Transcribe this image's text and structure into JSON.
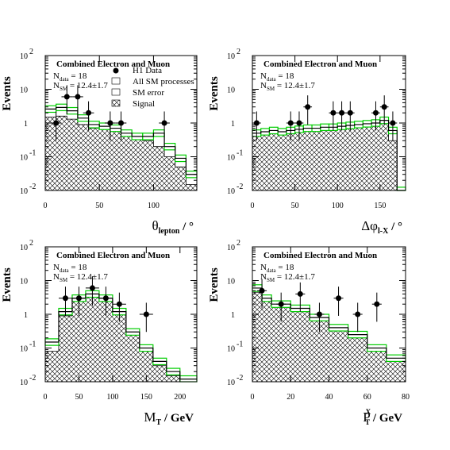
{
  "legend": {
    "data": "H1 Data",
    "sm": "All SM processes",
    "err": "SM error",
    "signal": "Signal"
  },
  "colors": {
    "sm_line": "#000000",
    "sm_error_band": "#00cc00",
    "signal_hatch": "#000000",
    "data_marker": "#000000"
  },
  "chart_data": [
    {
      "type": "bar",
      "title": "Combined Electron and Muon",
      "n_data": "N",
      "n_data_sub": "data",
      "n_data_val": " = 18",
      "n_sm": "N",
      "n_sm_sub": "SM",
      "n_sm_val": " = 12.4±1.7",
      "ylabel": "Events",
      "xlabel_main": "θ",
      "xlabel_sub": "lepton",
      "xlabel_tail": " / °",
      "xlim": [
        0,
        140
      ],
      "ylim": [
        0.01,
        100
      ],
      "yscale": "log",
      "xticks": [
        0,
        50,
        100
      ],
      "edges": [
        0,
        10,
        20,
        30,
        40,
        50,
        60,
        70,
        80,
        90,
        100,
        110,
        120,
        130,
        140
      ],
      "sm": [
        2.6,
        2.9,
        2.3,
        1.4,
        0.9,
        0.8,
        0.7,
        0.5,
        0.4,
        0.4,
        0.5,
        0.2,
        0.09,
        0.03
      ],
      "signal": [
        1.5,
        1.6,
        1.3,
        0.9,
        0.7,
        0.7,
        0.6,
        0.45,
        0.35,
        0.3,
        0.2,
        0.1,
        0.05,
        0.015
      ],
      "data": [
        {
          "x": 10,
          "y": 1
        },
        {
          "x": 20,
          "y": 6
        },
        {
          "x": 30,
          "y": 6
        },
        {
          "x": 40,
          "y": 2
        },
        {
          "x": 60,
          "y": 1
        },
        {
          "x": 70,
          "y": 1
        },
        {
          "x": 110,
          "y": 1
        }
      ],
      "show_legend": true
    },
    {
      "type": "bar",
      "title": "Combined Electron and Muon",
      "n_data": "N",
      "n_data_sub": "data",
      "n_data_val": " = 18",
      "n_sm": "N",
      "n_sm_sub": "SM",
      "n_sm_val": " = 12.4±1.7",
      "ylabel": "Events",
      "xlabel_main": "Δφ",
      "xlabel_sub": "l-X",
      "xlabel_tail": " / °",
      "xlim": [
        0,
        180
      ],
      "ylim": [
        0.01,
        100
      ],
      "yscale": "log",
      "xticks": [
        0,
        50,
        100,
        150
      ],
      "edges": [
        0,
        10,
        20,
        30,
        40,
        50,
        60,
        70,
        80,
        90,
        100,
        110,
        120,
        130,
        140,
        150,
        160,
        170,
        180
      ],
      "sm": [
        0.5,
        0.55,
        0.6,
        0.55,
        0.6,
        0.65,
        0.7,
        0.7,
        0.75,
        0.75,
        0.8,
        0.85,
        0.9,
        0.95,
        1.0,
        1.2,
        0.6,
        0.01
      ],
      "signal": [
        0.4,
        0.45,
        0.5,
        0.45,
        0.5,
        0.55,
        0.6,
        0.6,
        0.65,
        0.65,
        0.7,
        0.75,
        0.8,
        0.85,
        0.9,
        1.0,
        0.3,
        0.01
      ],
      "data": [
        {
          "x": 5,
          "y": 1
        },
        {
          "x": 45,
          "y": 1
        },
        {
          "x": 55,
          "y": 1
        },
        {
          "x": 65,
          "y": 3
        },
        {
          "x": 95,
          "y": 2
        },
        {
          "x": 105,
          "y": 2
        },
        {
          "x": 115,
          "y": 2
        },
        {
          "x": 145,
          "y": 2
        },
        {
          "x": 155,
          "y": 3
        },
        {
          "x": 165,
          "y": 1
        }
      ],
      "show_legend": false
    },
    {
      "type": "bar",
      "title": "Combined Electron and Muon",
      "n_data": "N",
      "n_data_sub": "data",
      "n_data_val": " = 18",
      "n_sm": "N",
      "n_sm_sub": "SM",
      "n_sm_val": " = 12.4±1.7",
      "ylabel": "Events",
      "xlabel_main": "M",
      "xlabel_sub": "T",
      "xlabel_tail": " / GeV",
      "xlim": [
        0,
        225
      ],
      "ylim": [
        0.01,
        100
      ],
      "yscale": "log",
      "xticks": [
        0,
        50,
        100,
        150,
        200
      ],
      "edges": [
        0,
        20,
        40,
        60,
        80,
        100,
        120,
        140,
        160,
        180,
        200,
        225
      ],
      "sm": [
        0.15,
        1.2,
        3.0,
        4.0,
        3.0,
        1.2,
        0.3,
        0.1,
        0.04,
        0.02,
        0.012
      ],
      "signal": [
        0.08,
        0.9,
        2.8,
        3.8,
        2.8,
        1.0,
        0.25,
        0.08,
        0.03,
        0.015,
        0.01
      ],
      "data": [
        {
          "x": 30,
          "y": 3
        },
        {
          "x": 50,
          "y": 3
        },
        {
          "x": 70,
          "y": 6
        },
        {
          "x": 90,
          "y": 3
        },
        {
          "x": 110,
          "y": 2
        },
        {
          "x": 150,
          "y": 1
        }
      ],
      "show_legend": false
    },
    {
      "type": "bar",
      "title": "Combined Electron and Muon",
      "n_data": "N",
      "n_data_sub": "data",
      "n_data_val": " = 18",
      "n_sm": "N",
      "n_sm_sub": "SM",
      "n_sm_val": " = 12.4±1.7",
      "ylabel": "Events",
      "xlabel_main": "P",
      "xlabel_sup": "X",
      "xlabel_sub": "T",
      "xlabel_tail": " / GeV",
      "xlim": [
        0,
        80
      ],
      "ylim": [
        0.01,
        100
      ],
      "yscale": "log",
      "xticks": [
        0,
        20,
        40,
        60,
        80
      ],
      "edges": [
        0,
        5,
        10,
        20,
        30,
        40,
        50,
        60,
        70,
        80
      ],
      "sm": [
        6.0,
        3.0,
        2.0,
        1.5,
        0.8,
        0.4,
        0.25,
        0.1,
        0.05
      ],
      "signal": [
        4.5,
        2.5,
        1.7,
        1.2,
        0.7,
        0.35,
        0.2,
        0.08,
        0.04
      ],
      "data": [
        {
          "x": 5,
          "y": 5
        },
        {
          "x": 15,
          "y": 2
        },
        {
          "x": 25,
          "y": 4
        },
        {
          "x": 35,
          "y": 1
        },
        {
          "x": 45,
          "y": 3
        },
        {
          "x": 55,
          "y": 1
        },
        {
          "x": 65,
          "y": 2
        }
      ],
      "show_legend": false
    }
  ]
}
